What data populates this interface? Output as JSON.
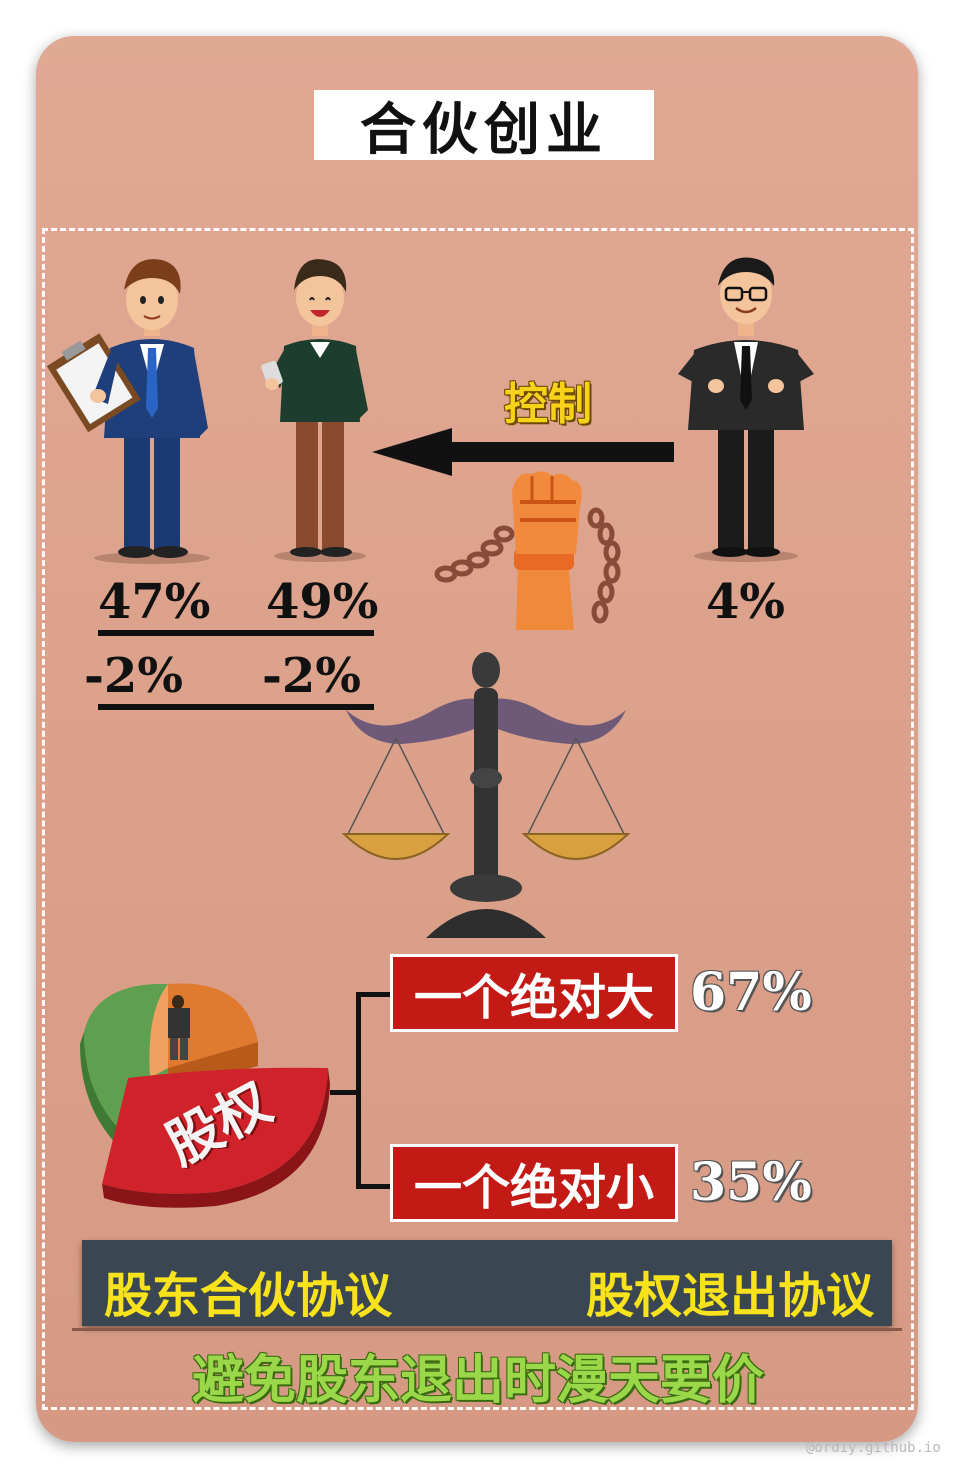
{
  "title": "合伙创业",
  "partners": [
    {
      "name_icon": "businessman-clipboard-icon",
      "share": "47%",
      "deduct": "-2%"
    },
    {
      "name_icon": "casual-man-phone-icon",
      "share": "49%",
      "deduct": "-2%"
    },
    {
      "name_icon": "man-suit-glasses-icon",
      "share": "4%"
    }
  ],
  "control_label": "控制",
  "equity": {
    "pie_label": "股权",
    "options": [
      {
        "label": "一个绝对大",
        "percent": "67%"
      },
      {
        "label": "一个绝对小",
        "percent": "35%"
      }
    ]
  },
  "banner": {
    "left": "股东合伙协议",
    "right": "股权退出协议"
  },
  "bottom_text": "避免股东退出时漫天要价",
  "watermark": "@ordiy.github.io",
  "colors": {
    "background": "#dca18b",
    "tag_red": "#c41a16",
    "banner": "#3a4651",
    "banner_text": "#f7e21b",
    "bottom_text": "#9ad84a",
    "control_text": "#f7d21b"
  }
}
